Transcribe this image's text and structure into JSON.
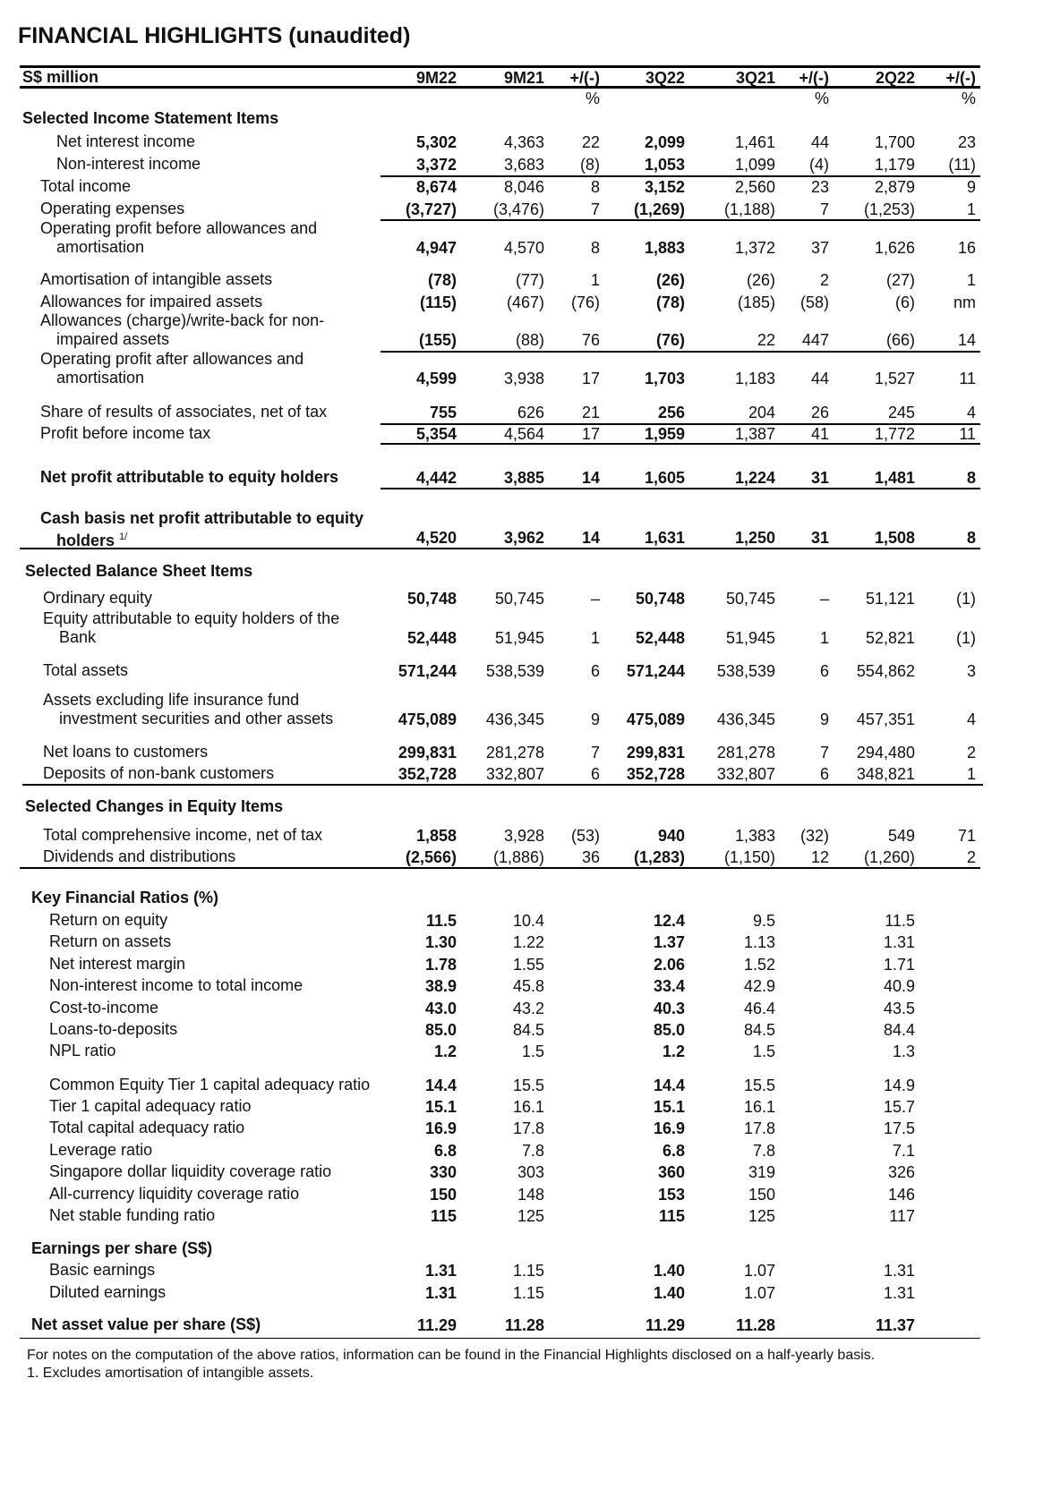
{
  "title": "FINANCIAL HIGHLIGHTS (unaudited)",
  "header": {
    "unit": "S$ million",
    "columns": [
      "9M22",
      "9M21",
      "+/(-)",
      "3Q22",
      "3Q21",
      "+/(-)",
      "2Q22",
      "+/(-)"
    ],
    "pct_row": [
      "",
      "",
      "%",
      "",
      "",
      "%",
      "",
      "%"
    ]
  },
  "sections": [
    {
      "title": "Selected Income Statement Items",
      "rows": [
        {
          "label": [
            "Net interest income"
          ],
          "values": [
            "5,302",
            "4,363",
            "22",
            "2,099",
            "1,461",
            "44",
            "1,700",
            "23"
          ]
        },
        {
          "label": [
            "Non-interest income"
          ],
          "values": [
            "3,372",
            "3,683",
            "(8)",
            "1,053",
            "1,099",
            "(4)",
            "1,179",
            "(11)"
          ]
        },
        {
          "label": [
            "Total income"
          ],
          "values": [
            "8,674",
            "8,046",
            "8",
            "3,152",
            "2,560",
            "23",
            "2,879",
            "9"
          ]
        },
        {
          "label": [
            "Operating expenses"
          ],
          "values": [
            "(3,727)",
            "(3,476)",
            "7",
            "(1,269)",
            "(1,188)",
            "7",
            "(1,253)",
            "1"
          ]
        },
        {
          "label": [
            "Operating profit before allowances and",
            "amortisation"
          ],
          "values": [
            "4,947",
            "4,570",
            "8",
            "1,883",
            "1,372",
            "37",
            "1,626",
            "16"
          ]
        },
        {
          "label": [
            "Amortisation of intangible assets"
          ],
          "values": [
            "(78)",
            "(77)",
            "1",
            "(26)",
            "(26)",
            "2",
            "(27)",
            "1"
          ]
        },
        {
          "label": [
            "Allowances for impaired assets"
          ],
          "values": [
            "(115)",
            "(467)",
            "(76)",
            "(78)",
            "(185)",
            "(58)",
            "(6)",
            "nm"
          ]
        },
        {
          "label": [
            "Allowances (charge)/write-back for non-",
            "impaired assets"
          ],
          "values": [
            "(155)",
            "(88)",
            "76",
            "(76)",
            "22",
            "447",
            "(66)",
            "14"
          ]
        },
        {
          "label": [
            "Operating profit after allowances and",
            "amortisation"
          ],
          "values": [
            "4,599",
            "3,938",
            "17",
            "1,703",
            "1,183",
            "44",
            "1,527",
            "11"
          ]
        },
        {
          "label": [
            "Share of results of associates, net of tax"
          ],
          "values": [
            "755",
            "626",
            "21",
            "256",
            "204",
            "26",
            "245",
            "4"
          ]
        },
        {
          "label": [
            "Profit before income tax"
          ],
          "values": [
            "5,354",
            "4,564",
            "17",
            "1,959",
            "1,387",
            "41",
            "1,772",
            "11"
          ]
        },
        {
          "label": [
            "Net profit attributable to equity holders"
          ],
          "bold": true,
          "values": [
            "4,442",
            "3,885",
            "14",
            "1,605",
            "1,224",
            "31",
            "1,481",
            "8"
          ]
        },
        {
          "label": [
            "Cash basis net profit attributable to equity",
            "holders"
          ],
          "footnote_ref": "1/",
          "bold": true,
          "values": [
            "4,520",
            "3,962",
            "14",
            "1,631",
            "1,250",
            "31",
            "1,508",
            "8"
          ]
        }
      ]
    },
    {
      "title": "Selected Balance Sheet Items",
      "rows": [
        {
          "label": [
            "Ordinary equity"
          ],
          "values": [
            "50,748",
            "50,745",
            "–",
            "50,748",
            "50,745",
            "–",
            "51,121",
            "(1)"
          ]
        },
        {
          "label": [
            "Equity attributable to equity holders of the",
            "Bank"
          ],
          "values": [
            "52,448",
            "51,945",
            "1",
            "52,448",
            "51,945",
            "1",
            "52,821",
            "(1)"
          ]
        },
        {
          "label": [
            "Total assets"
          ],
          "values": [
            "571,244",
            "538,539",
            "6",
            "571,244",
            "538,539",
            "6",
            "554,862",
            "3"
          ]
        },
        {
          "label": [
            "Assets excluding life insurance fund",
            "investment securities and other assets"
          ],
          "values": [
            "475,089",
            "436,345",
            "9",
            "475,089",
            "436,345",
            "9",
            "457,351",
            "4"
          ]
        },
        {
          "label": [
            "Net loans to customers"
          ],
          "values": [
            "299,831",
            "281,278",
            "7",
            "299,831",
            "281,278",
            "7",
            "294,480",
            "2"
          ]
        },
        {
          "label": [
            "Deposits of non-bank customers"
          ],
          "values": [
            "352,728",
            "332,807",
            "6",
            "352,728",
            "332,807",
            "6",
            "348,821",
            "1"
          ]
        }
      ]
    },
    {
      "title": "Selected Changes in Equity Items",
      "rows": [
        {
          "label": [
            "Total comprehensive income, net of tax"
          ],
          "values": [
            "1,858",
            "3,928",
            "(53)",
            "940",
            "1,383",
            "(32)",
            "549",
            "71"
          ]
        },
        {
          "label": [
            "Dividends and distributions"
          ],
          "values": [
            "(2,566)",
            "(1,886)",
            "36",
            "(1,283)",
            "(1,150)",
            "12",
            "(1,260)",
            "2"
          ]
        }
      ]
    },
    {
      "title": "Key Financial Ratios (%)",
      "rows": [
        {
          "label": [
            "Return on equity"
          ],
          "values": [
            "11.5",
            "10.4",
            "",
            "12.4",
            "9.5",
            "",
            "11.5",
            ""
          ]
        },
        {
          "label": [
            "Return on assets"
          ],
          "values": [
            "1.30",
            "1.22",
            "",
            "1.37",
            "1.13",
            "",
            "1.31",
            ""
          ]
        },
        {
          "label": [
            "Net interest margin"
          ],
          "values": [
            "1.78",
            "1.55",
            "",
            "2.06",
            "1.52",
            "",
            "1.71",
            ""
          ]
        },
        {
          "label": [
            "Non-interest income to total income"
          ],
          "values": [
            "38.9",
            "45.8",
            "",
            "33.4",
            "42.9",
            "",
            "40.9",
            ""
          ]
        },
        {
          "label": [
            "Cost-to-income"
          ],
          "values": [
            "43.0",
            "43.2",
            "",
            "40.3",
            "46.4",
            "",
            "43.5",
            ""
          ]
        },
        {
          "label": [
            "Loans-to-deposits"
          ],
          "values": [
            "85.0",
            "84.5",
            "",
            "85.0",
            "84.5",
            "",
            "84.4",
            ""
          ]
        },
        {
          "label": [
            "NPL ratio"
          ],
          "values": [
            "1.2",
            "1.5",
            "",
            "1.2",
            "1.5",
            "",
            "1.3",
            ""
          ]
        },
        {
          "label": [
            "Common Equity Tier 1 capital adequacy ratio"
          ],
          "values": [
            "14.4",
            "15.5",
            "",
            "14.4",
            "15.5",
            "",
            "14.9",
            ""
          ]
        },
        {
          "label": [
            "Tier 1 capital adequacy ratio"
          ],
          "values": [
            "15.1",
            "16.1",
            "",
            "15.1",
            "16.1",
            "",
            "15.7",
            ""
          ]
        },
        {
          "label": [
            "Total capital adequacy ratio"
          ],
          "values": [
            "16.9",
            "17.8",
            "",
            "16.9",
            "17.8",
            "",
            "17.5",
            ""
          ]
        },
        {
          "label": [
            "Leverage ratio"
          ],
          "values": [
            "6.8",
            "7.8",
            "",
            "6.8",
            "7.8",
            "",
            "7.1",
            ""
          ]
        },
        {
          "label": [
            "Singapore dollar liquidity coverage ratio"
          ],
          "values": [
            "330",
            "303",
            "",
            "360",
            "319",
            "",
            "326",
            ""
          ]
        },
        {
          "label": [
            "All-currency liquidity coverage ratio"
          ],
          "values": [
            "150",
            "148",
            "",
            "153",
            "150",
            "",
            "146",
            ""
          ]
        },
        {
          "label": [
            "Net stable funding ratio"
          ],
          "values": [
            "115",
            "125",
            "",
            "115",
            "125",
            "",
            "117",
            ""
          ]
        }
      ]
    },
    {
      "title": "Earnings per share (S$)",
      "rows": [
        {
          "label": [
            "Basic earnings"
          ],
          "values": [
            "1.31",
            "1.15",
            "",
            "1.40",
            "1.07",
            "",
            "1.31",
            ""
          ]
        },
        {
          "label": [
            "Diluted earnings"
          ],
          "values": [
            "1.31",
            "1.15",
            "",
            "1.40",
            "1.07",
            "",
            "1.31",
            ""
          ]
        }
      ]
    },
    {
      "title": "",
      "rows": [
        {
          "label": [
            "Net asset value per share (S$)"
          ],
          "bold": true,
          "values": [
            "11.29",
            "11.28",
            "",
            "11.29",
            "11.28",
            "",
            "11.37",
            ""
          ]
        }
      ]
    }
  ],
  "footnotes": [
    "For notes on the computation of the above ratios, information can be found in the Financial Highlights disclosed on a half-yearly basis.",
    "1.    Excludes amortisation of intangible assets."
  ]
}
